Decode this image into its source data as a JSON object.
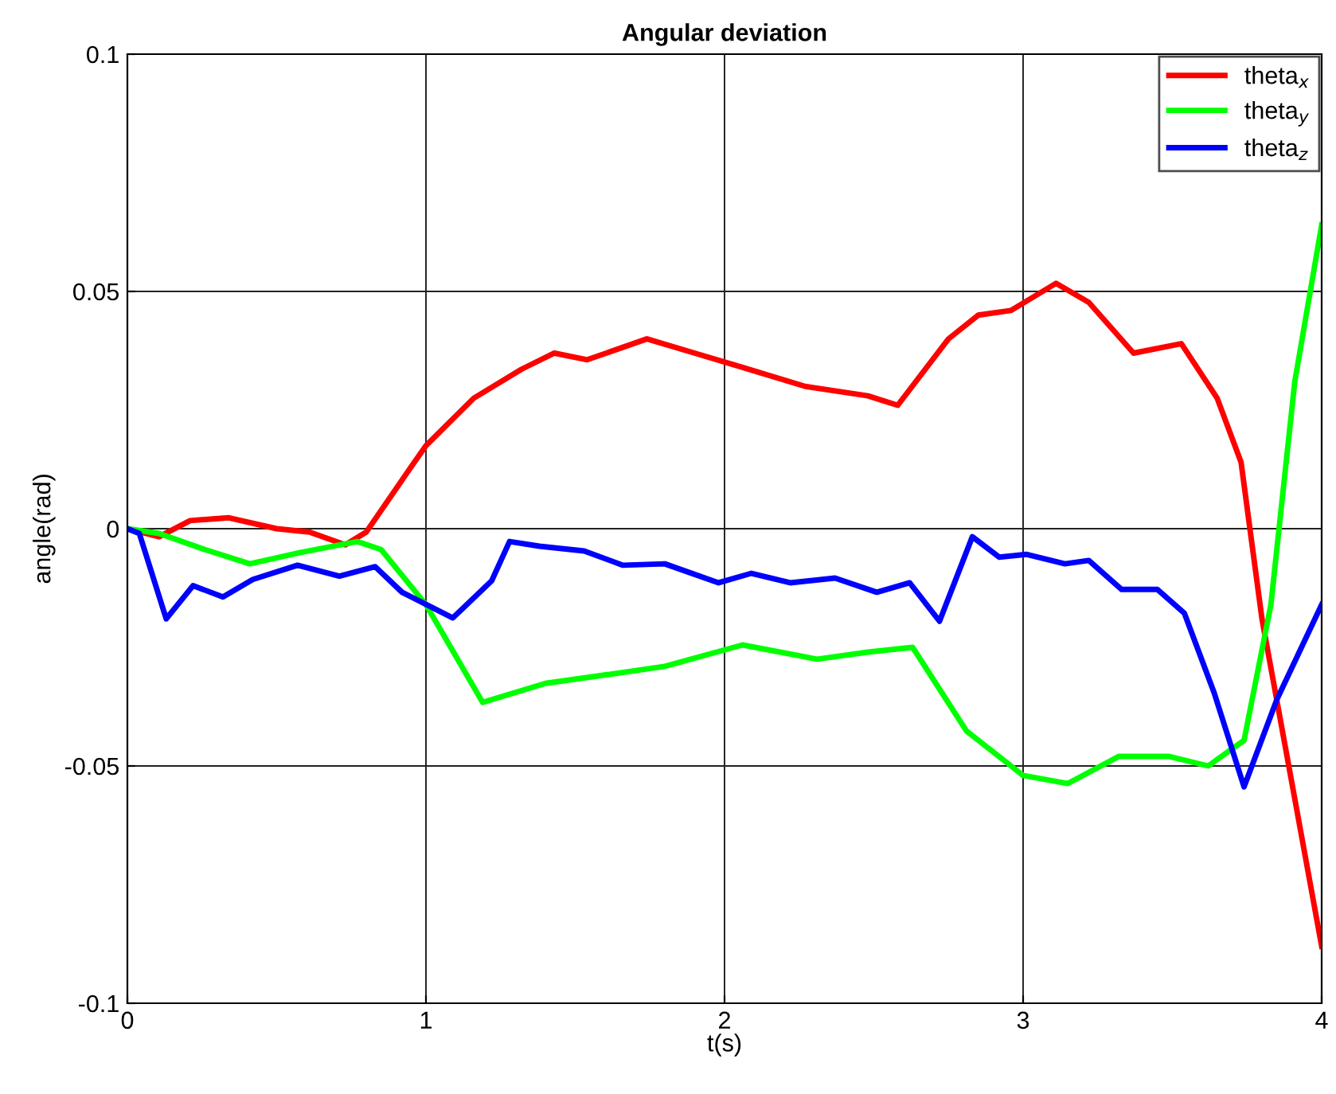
{
  "chart_data": {
    "type": "line",
    "title": "Angular deviation",
    "xlabel": "t(s)",
    "ylabel": "angle(rad)",
    "xlim": [
      0,
      4
    ],
    "xticks": [
      0,
      1,
      2,
      3,
      4
    ],
    "ylim": [
      -0.1,
      0.1
    ],
    "yticks": [
      -0.1,
      -0.05,
      0,
      0.05,
      0.1
    ],
    "grid": true,
    "legend": "top right",
    "series": [
      {
        "name": "theta$_{x}$",
        "color": "#ff0000",
        "x": [
          0,
          0.106,
          0.21,
          0.34,
          0.5,
          0.61,
          0.73,
          0.8,
          0.95,
          1.0,
          1.16,
          1.32,
          1.43,
          1.54,
          1.74,
          1.9,
          2.06,
          2.27,
          2.48,
          2.58,
          2.75,
          2.85,
          2.96,
          3.11,
          3.22,
          3.37,
          3.53,
          3.65,
          3.73,
          3.8,
          4.0
        ],
        "values": [
          0,
          -0.0017,
          0.0017,
          0.0023,
          0,
          -0.0007,
          -0.0034,
          -0.0007,
          0.013,
          0.0175,
          0.0275,
          0.0336,
          0.037,
          0.0356,
          0.04,
          0.037,
          0.034,
          0.03,
          0.028,
          0.026,
          0.04,
          0.045,
          0.046,
          0.0517,
          0.0477,
          0.037,
          0.039,
          0.0275,
          0.014,
          -0.019,
          -0.088
        ]
      },
      {
        "name": "theta$_{y}$",
        "color": "#00ff00",
        "x": [
          0,
          0.106,
          0.26,
          0.41,
          0.58,
          0.77,
          0.85,
          1.0,
          1.19,
          1.4,
          1.58,
          1.8,
          2.06,
          2.31,
          2.48,
          2.63,
          2.81,
          3.0,
          3.15,
          3.32,
          3.49,
          3.62,
          3.74,
          3.83,
          3.91,
          4.0
        ],
        "values": [
          0,
          -0.001,
          -0.0044,
          -0.0074,
          -0.005,
          -0.0027,
          -0.0044,
          -0.016,
          -0.0366,
          -0.0326,
          -0.031,
          -0.029,
          -0.0245,
          -0.0275,
          -0.026,
          -0.025,
          -0.0426,
          -0.052,
          -0.0537,
          -0.048,
          -0.048,
          -0.05,
          -0.0446,
          -0.016,
          0.031,
          0.064
        ]
      },
      {
        "name": "theta$_{z}$",
        "color": "#0000ff",
        "x": [
          0,
          0.04,
          0.13,
          0.22,
          0.32,
          0.42,
          0.57,
          0.71,
          0.83,
          0.92,
          1.09,
          1.22,
          1.28,
          1.38,
          1.53,
          1.66,
          1.8,
          1.98,
          2.09,
          2.22,
          2.37,
          2.51,
          2.62,
          2.72,
          2.83,
          2.92,
          3.01,
          3.14,
          3.22,
          3.33,
          3.45,
          3.54,
          3.64,
          3.74,
          3.85,
          4.0
        ],
        "values": [
          0,
          -0.001,
          -0.019,
          -0.012,
          -0.0144,
          -0.0107,
          -0.0077,
          -0.01,
          -0.008,
          -0.0134,
          -0.0188,
          -0.011,
          -0.0027,
          -0.0037,
          -0.0047,
          -0.0077,
          -0.0074,
          -0.0114,
          -0.0094,
          -0.0114,
          -0.0104,
          -0.0134,
          -0.0114,
          -0.0195,
          -0.0017,
          -0.006,
          -0.0054,
          -0.0074,
          -0.0067,
          -0.0128,
          -0.0128,
          -0.0178,
          -0.0346,
          -0.0544,
          -0.036,
          -0.016
        ]
      }
    ]
  }
}
